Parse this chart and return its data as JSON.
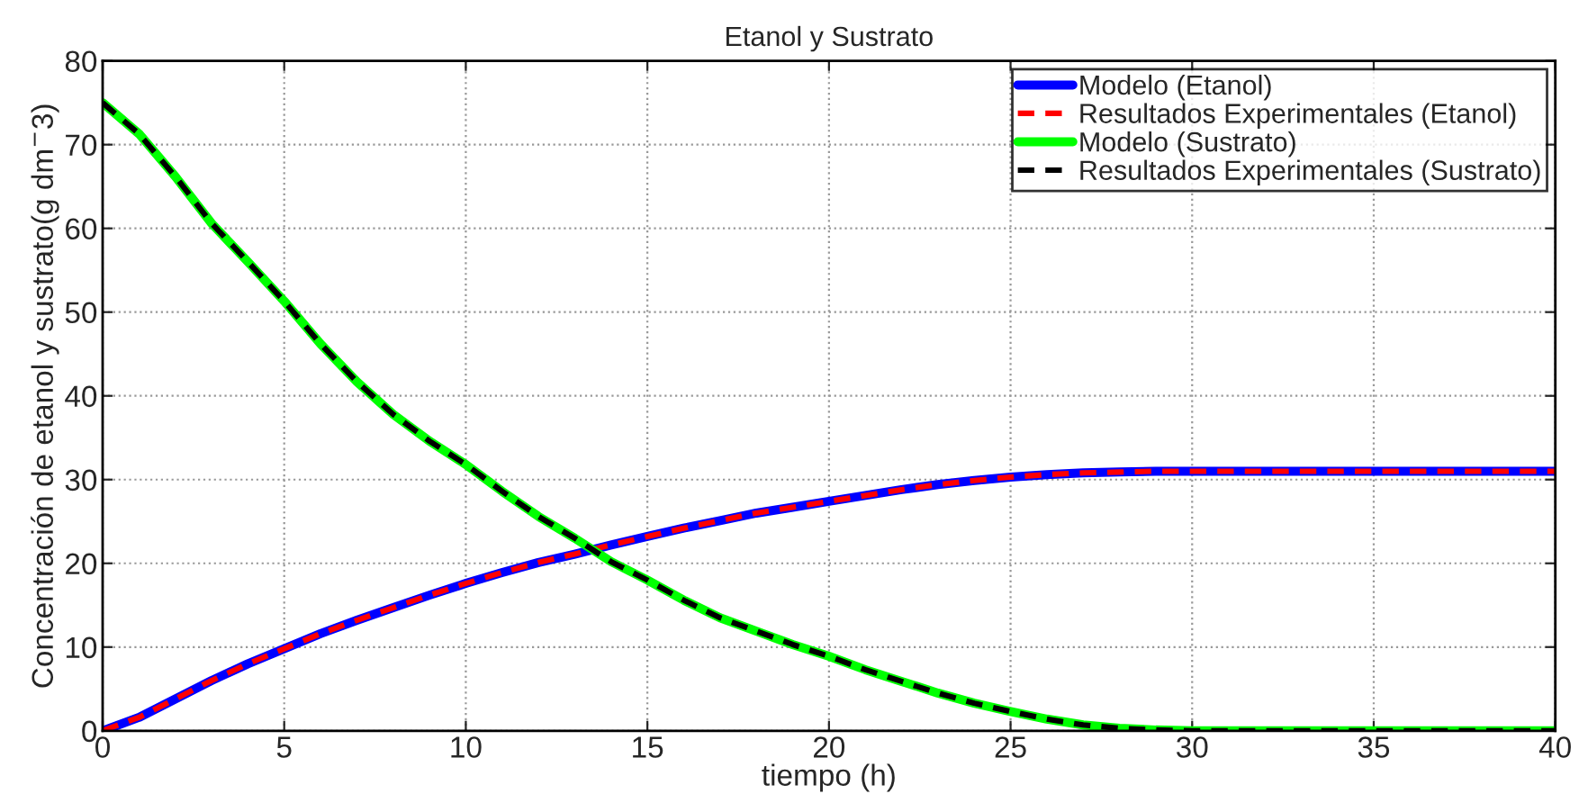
{
  "chart_data": {
    "type": "line",
    "title": "Etanol y Sustrato",
    "xlabel": "tiempo (h)",
    "ylabel": "Concentración de etanol y sustrato(g dm$^{−}$3)",
    "x": [
      0,
      1,
      2,
      3,
      4,
      5,
      6,
      7,
      8,
      9,
      10,
      11,
      12,
      13,
      14,
      15,
      16,
      17,
      18,
      19,
      20,
      21,
      22,
      23,
      24,
      25,
      26,
      27,
      28,
      29,
      30,
      32,
      35,
      40
    ],
    "series": [
      {
        "name": "Modelo (Etanol)",
        "color": "#0000ff",
        "line_style": "solid",
        "values": [
          0,
          1.6,
          3.8,
          6.0,
          8.0,
          9.8,
          11.6,
          13.2,
          14.7,
          16.2,
          17.6,
          18.9,
          20.1,
          21.1,
          22.2,
          23.2,
          24.2,
          25.1,
          26.0,
          26.7,
          27.4,
          28.1,
          28.8,
          29.4,
          29.9,
          30.3,
          30.6,
          30.8,
          30.9,
          31.0,
          31.0,
          31.0,
          31.0,
          31.0
        ]
      },
      {
        "name": "Resultados Experimentales (Etanol)",
        "color": "#ff0000",
        "line_style": "dashed",
        "values": [
          0,
          1.6,
          3.8,
          6.0,
          8.0,
          9.8,
          11.6,
          13.2,
          14.7,
          16.2,
          17.6,
          18.9,
          20.1,
          21.1,
          22.2,
          23.2,
          24.2,
          25.1,
          26.0,
          26.7,
          27.4,
          28.1,
          28.8,
          29.4,
          29.9,
          30.3,
          30.6,
          30.8,
          30.9,
          31.0,
          31.0,
          31.0,
          31.0,
          31.0
        ]
      },
      {
        "name": "Modelo (Sustrato)",
        "color": "#00ff00",
        "line_style": "solid",
        "values": [
          75,
          71.3,
          66.2,
          60.6,
          56.0,
          51.3,
          46.2,
          41.7,
          37.8,
          34.6,
          31.8,
          28.6,
          25.6,
          23.0,
          20.2,
          18.0,
          15.6,
          13.5,
          11.9,
          10.3,
          8.9,
          7.3,
          5.9,
          4.5,
          3.3,
          2.3,
          1.4,
          0.7,
          0.3,
          0.1,
          0,
          0,
          0,
          0
        ]
      },
      {
        "name": "Resultados Experimentales (Sustrato)",
        "color": "#000000",
        "line_style": "dashed",
        "values": [
          75,
          71.3,
          66.2,
          60.6,
          56.0,
          51.3,
          46.2,
          41.7,
          37.8,
          34.6,
          31.8,
          28.6,
          25.6,
          23.0,
          20.2,
          18.0,
          15.6,
          13.5,
          11.9,
          10.3,
          8.9,
          7.3,
          5.9,
          4.5,
          3.3,
          2.3,
          1.4,
          0.7,
          0.3,
          0.1,
          0,
          0,
          0,
          0
        ]
      }
    ],
    "xlim": [
      0,
      40
    ],
    "xticks": [
      0,
      5,
      10,
      15,
      20,
      25,
      30,
      35,
      40
    ],
    "ylim": [
      0,
      80
    ],
    "yticks": [
      0,
      10,
      20,
      30,
      40,
      50,
      60,
      70,
      80
    ],
    "grid": true,
    "legend": "top right",
    "marker": "none"
  }
}
